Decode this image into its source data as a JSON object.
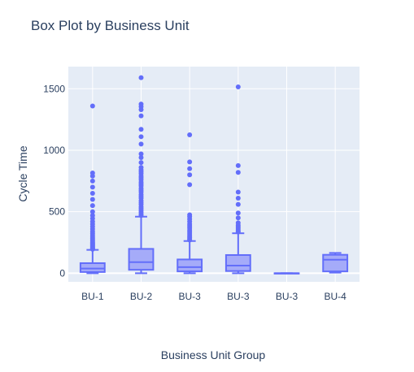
{
  "chart_data": {
    "type": "box",
    "title": "Box Plot by Business Unit",
    "xlabel": "Business Unit Group",
    "ylabel": "Cycle Time",
    "ylim": [
      -70,
      1680
    ],
    "y_ticks": [
      0,
      500,
      1000,
      1500
    ],
    "y_tick_labels": [
      "0",
      "500",
      "1000",
      "1500"
    ],
    "grid": true,
    "plot_bg": "#e5ecf6",
    "box_color": "#636efa",
    "box_fill": "#a5abf9",
    "categories": [
      "BU-1",
      "BU-2",
      "BU-3",
      "BU-3",
      "BU-3",
      "BU-4"
    ],
    "boxes": [
      {
        "label": "BU-1",
        "lower_whisker": 0,
        "q1": 10,
        "median": 38,
        "q3": 82,
        "upper_whisker": 190,
        "outliers": [
          195,
          200,
          205,
          212,
          220,
          228,
          235,
          243,
          250,
          260,
          270,
          282,
          295,
          310,
          325,
          340,
          360,
          380,
          400,
          420,
          445,
          470,
          500,
          550,
          600,
          650,
          700,
          750,
          790,
          815,
          1360
        ]
      },
      {
        "label": "BU-2",
        "lower_whisker": 0,
        "q1": 28,
        "median": 90,
        "q3": 198,
        "upper_whisker": 460,
        "outliers": [
          470,
          480,
          495,
          510,
          525,
          540,
          560,
          575,
          590,
          610,
          625,
          640,
          660,
          675,
          690,
          710,
          725,
          740,
          760,
          775,
          790,
          810,
          825,
          840,
          860,
          900,
          940,
          970,
          1050,
          1110,
          1170,
          1280,
          1330,
          1355,
          1375,
          1590
        ]
      },
      {
        "label": "BU-3",
        "lower_whisker": 0,
        "q1": 15,
        "median": 50,
        "q3": 112,
        "upper_whisker": 262,
        "outliers": [
          270,
          280,
          292,
          305,
          320,
          335,
          350,
          368,
          385,
          400,
          420,
          440,
          460,
          475,
          720,
          800,
          850,
          905,
          1125
        ]
      },
      {
        "label": "BU-3",
        "lower_whisker": 0,
        "q1": 18,
        "median": 62,
        "q3": 148,
        "upper_whisker": 325,
        "outliers": [
          335,
          345,
          360,
          375,
          390,
          410,
          450,
          490,
          560,
          610,
          660,
          820,
          875,
          1515
        ]
      },
      {
        "label": "BU-3",
        "lower_whisker": 0,
        "q1": 0,
        "median": 0,
        "q3": 0,
        "upper_whisker": 0,
        "outliers": []
      },
      {
        "label": "BU-4",
        "lower_whisker": 5,
        "q1": 15,
        "median": 110,
        "q3": 150,
        "upper_whisker": 165,
        "outliers": []
      }
    ]
  }
}
